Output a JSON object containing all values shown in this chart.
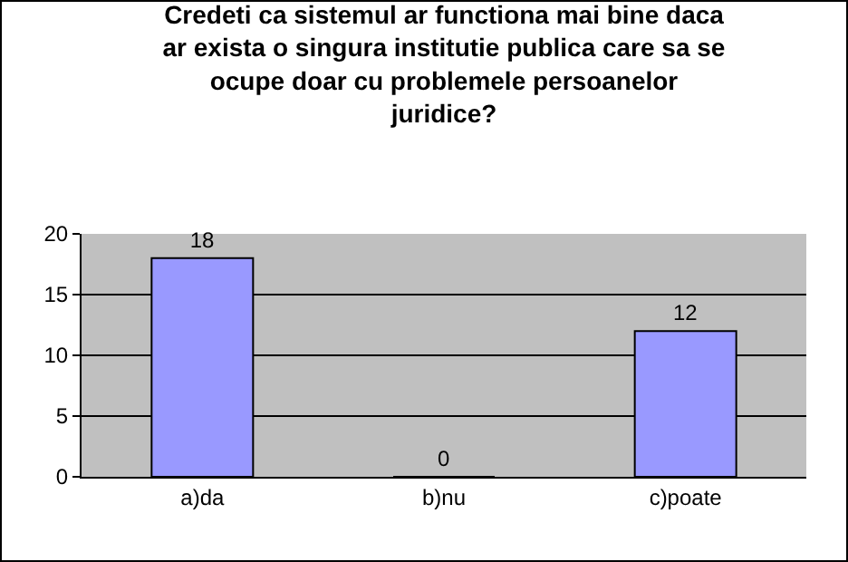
{
  "chart_data": {
    "type": "bar",
    "title": "Credeti ca sistemul ar functiona mai bine daca\nar exista o singura institutie publica care sa se\nocupe doar cu problemele persoanelor\njuridice?",
    "categories": [
      "a)da",
      "b)nu",
      "c)poate"
    ],
    "values": [
      18,
      0,
      12
    ],
    "color": "#9999ff",
    "ylim": [
      0,
      20
    ],
    "yticks": [
      0,
      5,
      10,
      15,
      20
    ],
    "grid": "y",
    "data_labels": true,
    "legend": false
  }
}
